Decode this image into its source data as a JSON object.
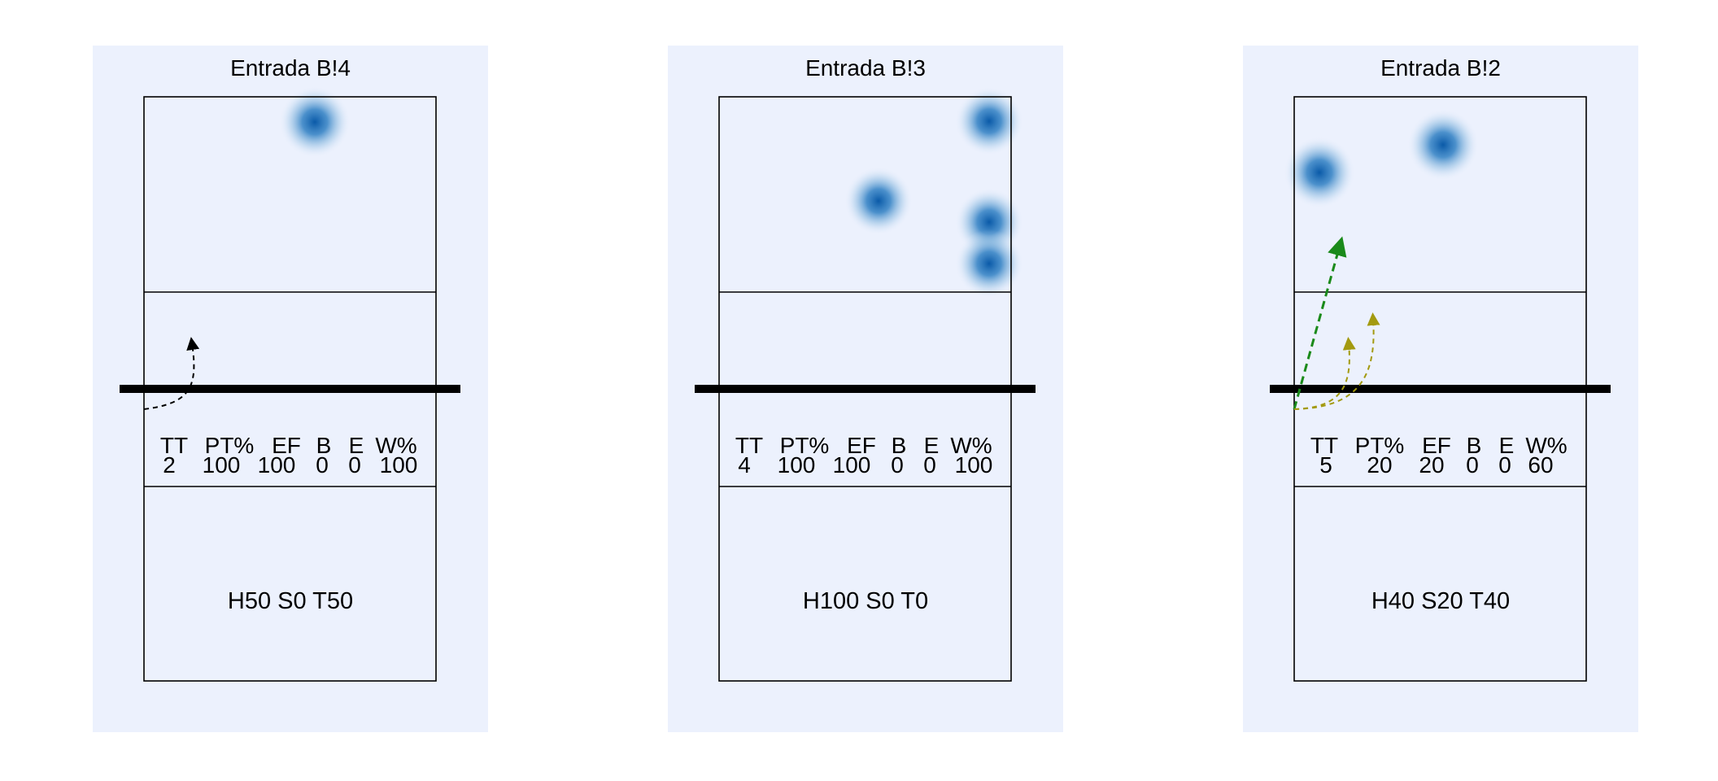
{
  "panels": [
    {
      "title": "Entrada B!4",
      "stats": {
        "headers": [
          "TT",
          "PT%",
          "EF",
          "B",
          "E",
          "W%"
        ],
        "values": [
          "2",
          "100",
          "100",
          "0",
          "0",
          "100"
        ]
      },
      "distribution": "H50 S0 T50"
    },
    {
      "title": "Entrada B!3",
      "stats": {
        "headers": [
          "TT",
          "PT%",
          "EF",
          "B",
          "E",
          "W%"
        ],
        "values": [
          "4",
          "100",
          "100",
          "0",
          "0",
          "100"
        ]
      },
      "distribution": "H100 S0 T0"
    },
    {
      "title": "Entrada B!2",
      "stats": {
        "headers": [
          "TT",
          "PT%",
          "EF",
          "B",
          "E",
          "W%"
        ],
        "values": [
          "5",
          "20",
          "20",
          "0",
          "0",
          "60"
        ]
      },
      "distribution": "H40 S20 T40"
    }
  ],
  "colors": {
    "panel_background": "#ecf1fd",
    "heat": "#0a5aa8",
    "arrow_black": "#000000",
    "arrow_green": "#1a8a1a",
    "arrow_olive": "#a39a10"
  }
}
